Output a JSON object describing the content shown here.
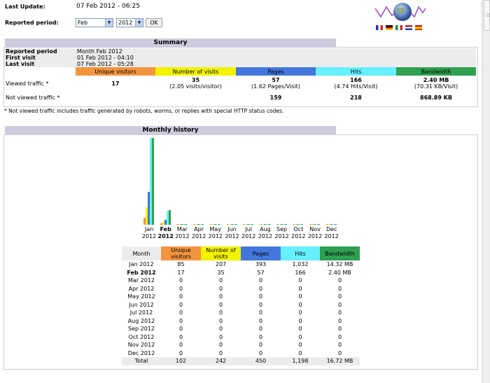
{
  "header": {
    "last_update_label": "Last Update:",
    "last_update_value": "07 Feb 2012 - 06:25",
    "period_label": "Reported period:",
    "month_select": "Feb",
    "year_select": "2012",
    "ok_label": "OK"
  },
  "colors": {
    "visitors": "#f3953f",
    "visits": "#f3f300",
    "pages": "#4477dd",
    "hits": "#66f0ff",
    "bandwidth": "#2ea04f",
    "section": "#ccccdd"
  },
  "summary": {
    "title": "Summary",
    "reported_period_label": "Reported period",
    "reported_period_value": "Month Feb 2012",
    "first_visit_label": "First visit",
    "first_visit_value": "01 Feb 2012 - 04:10",
    "last_visit_label": "Last visit",
    "last_visit_value": "07 Feb 2012 - 05:28",
    "columns": [
      "Unique visitors",
      "Number of visits",
      "Pages",
      "Hits",
      "Bandwidth"
    ],
    "viewed_label": "Viewed traffic *",
    "viewed": {
      "visitors": "17",
      "visits": "35",
      "visits_sub": "(2.05 visits/visitor)",
      "pages": "57",
      "pages_sub": "(1.62 Pages/Visit)",
      "hits": "166",
      "hits_sub": "(4.74 Hits/Visit)",
      "bandwidth": "2.40 MB",
      "bandwidth_sub": "(70.31 KB/Visit)"
    },
    "not_viewed_label": "Not viewed traffic *",
    "not_viewed": {
      "pages": "159",
      "hits": "218",
      "bandwidth": "868.89 KB"
    },
    "footnote": "* Not viewed traffic includes traffic generated by robots, worms, or replies with special HTTP status codes."
  },
  "history": {
    "title": "Monthly history",
    "columns": [
      "Month",
      "Unique visitors",
      "Number of visits",
      "Pages",
      "Hits",
      "Bandwidth"
    ],
    "rows": [
      {
        "month": "Jan 2012",
        "visitors": "85",
        "visits": "207",
        "pages": "393",
        "hits": "1,032",
        "bandwidth": "14.32 MB"
      },
      {
        "month": "Feb 2012",
        "visitors": "17",
        "visits": "35",
        "pages": "57",
        "hits": "166",
        "bandwidth": "2.40 MB"
      },
      {
        "month": "Mar 2012",
        "visitors": "0",
        "visits": "0",
        "pages": "0",
        "hits": "0",
        "bandwidth": "0"
      },
      {
        "month": "Apr 2012",
        "visitors": "0",
        "visits": "0",
        "pages": "0",
        "hits": "0",
        "bandwidth": "0"
      },
      {
        "month": "May 2012",
        "visitors": "0",
        "visits": "0",
        "pages": "0",
        "hits": "0",
        "bandwidth": "0"
      },
      {
        "month": "Jun 2012",
        "visitors": "0",
        "visits": "0",
        "pages": "0",
        "hits": "0",
        "bandwidth": "0"
      },
      {
        "month": "Jul 2012",
        "visitors": "0",
        "visits": "0",
        "pages": "0",
        "hits": "0",
        "bandwidth": "0"
      },
      {
        "month": "Aug 2012",
        "visitors": "0",
        "visits": "0",
        "pages": "0",
        "hits": "0",
        "bandwidth": "0"
      },
      {
        "month": "Sep 2012",
        "visitors": "0",
        "visits": "0",
        "pages": "0",
        "hits": "0",
        "bandwidth": "0"
      },
      {
        "month": "Oct 2012",
        "visitors": "0",
        "visits": "0",
        "pages": "0",
        "hits": "0",
        "bandwidth": "0"
      },
      {
        "month": "Nov 2012",
        "visitors": "0",
        "visits": "0",
        "pages": "0",
        "hits": "0",
        "bandwidth": "0"
      },
      {
        "month": "Dec 2012",
        "visitors": "0",
        "visits": "0",
        "pages": "0",
        "hits": "0",
        "bandwidth": "0"
      }
    ],
    "total": {
      "month": "Total",
      "visitors": "102",
      "visits": "242",
      "pages": "450",
      "hits": "1,198",
      "bandwidth": "16.72 MB"
    }
  },
  "chart_data": {
    "type": "bar",
    "categories": [
      "Jan 2012",
      "Feb 2012",
      "Mar 2012",
      "Apr 2012",
      "May 2012",
      "Jun 2012",
      "Jul 2012",
      "Aug 2012",
      "Sep 2012",
      "Oct 2012",
      "Nov 2012",
      "Dec 2012"
    ],
    "month_labels": [
      "Jan",
      "Feb",
      "Mar",
      "Apr",
      "May",
      "Jun",
      "Jul",
      "Aug",
      "Sep",
      "Oct",
      "Nov",
      "Dec"
    ],
    "year_label": "2012",
    "series": [
      {
        "name": "Unique visitors",
        "values": [
          85,
          17,
          0,
          0,
          0,
          0,
          0,
          0,
          0,
          0,
          0,
          0
        ]
      },
      {
        "name": "Number of visits",
        "values": [
          207,
          35,
          0,
          0,
          0,
          0,
          0,
          0,
          0,
          0,
          0,
          0
        ]
      },
      {
        "name": "Pages",
        "values": [
          393,
          57,
          0,
          0,
          0,
          0,
          0,
          0,
          0,
          0,
          0,
          0
        ]
      },
      {
        "name": "Hits",
        "values": [
          1032,
          166,
          0,
          0,
          0,
          0,
          0,
          0,
          0,
          0,
          0,
          0
        ]
      },
      {
        "name": "Bandwidth",
        "values": [
          14.32,
          2.4,
          0,
          0,
          0,
          0,
          0,
          0,
          0,
          0,
          0,
          0
        ],
        "unit": "MB"
      }
    ],
    "highlight_category": "Feb 2012"
  }
}
